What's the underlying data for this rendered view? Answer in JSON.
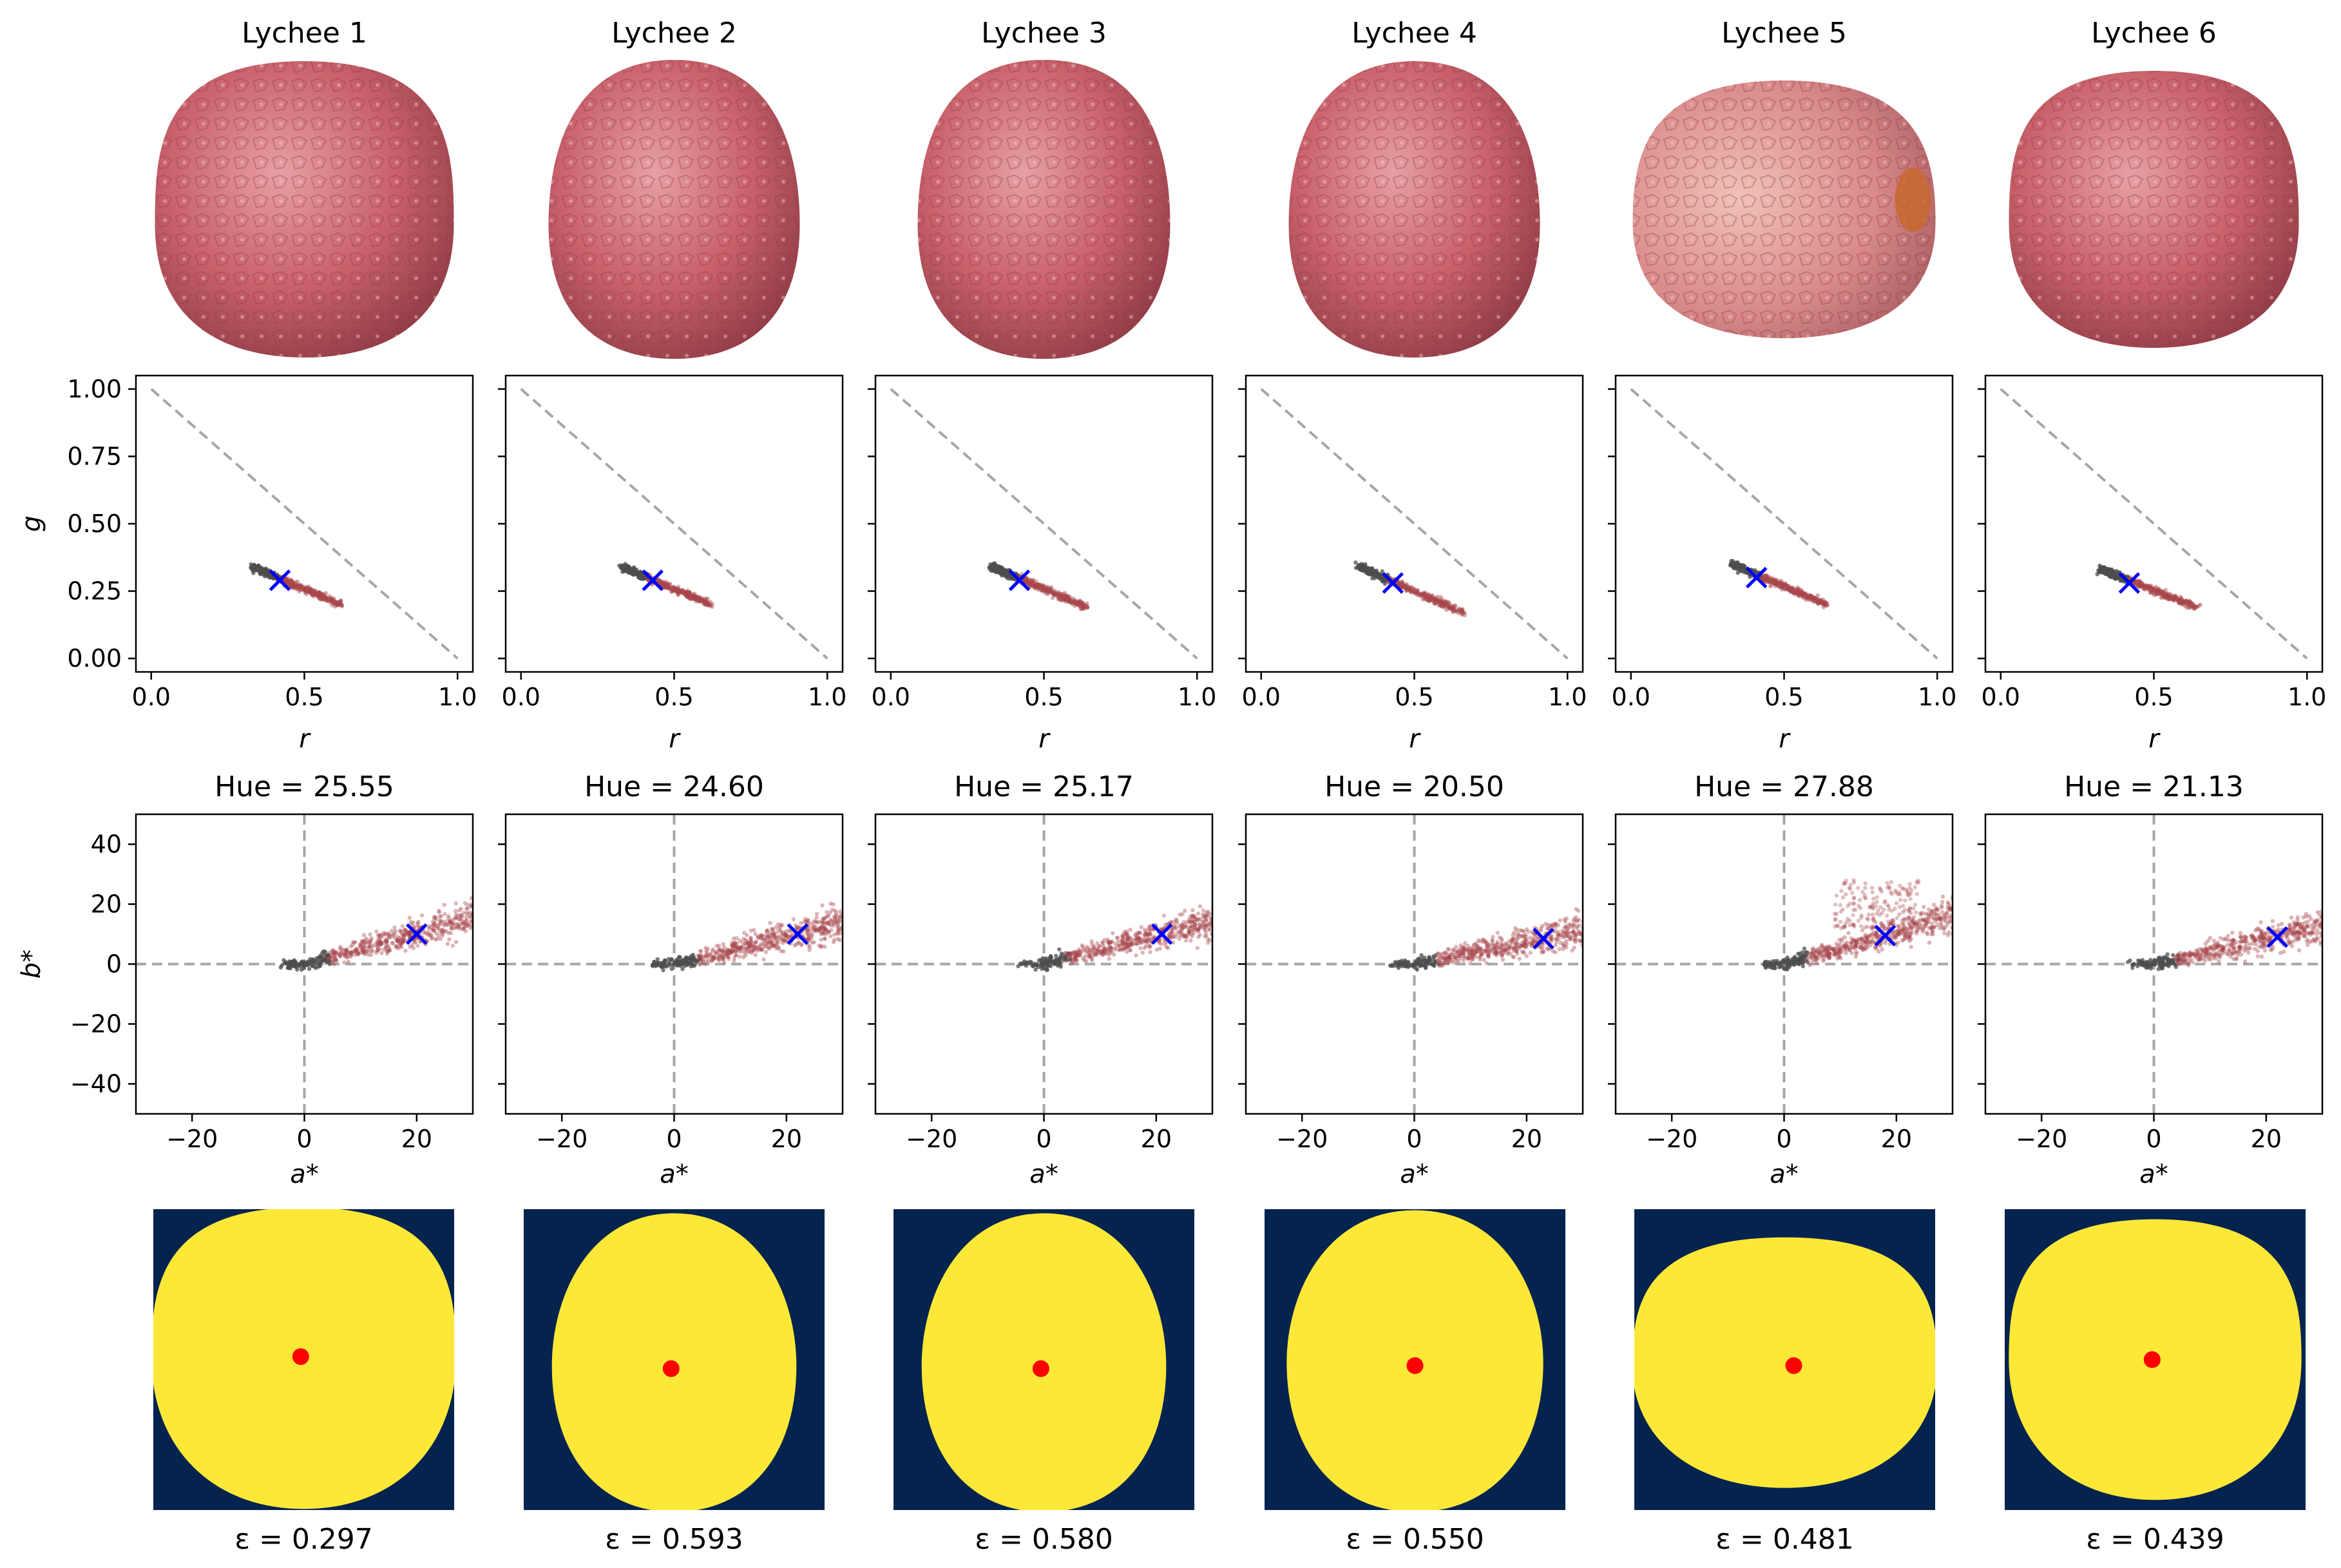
{
  "figure": {
    "columns": [
      {
        "title": "Lychee 1",
        "hue_label": "Hue = 25.55",
        "eps_label": "ε = 0.297"
      },
      {
        "title": "Lychee 2",
        "hue_label": "Hue = 24.60",
        "eps_label": "ε = 0.593"
      },
      {
        "title": "Lychee 3",
        "hue_label": "Hue = 25.17",
        "eps_label": "ε = 0.580"
      },
      {
        "title": "Lychee 4",
        "hue_label": "Hue = 20.50",
        "eps_label": "ε = 0.550"
      },
      {
        "title": "Lychee 5",
        "hue_label": "Hue = 27.88",
        "eps_label": "ε = 0.481"
      },
      {
        "title": "Lychee 6",
        "hue_label": "Hue = 21.13",
        "eps_label": "ε = 0.439"
      }
    ]
  },
  "colors": {
    "lychee_skin": "#c9616b",
    "lychee_light": "#e7a0a4",
    "lychee_dark": "#8e3a44",
    "mask_background": "#04234f",
    "mask_foreground": "#fde838",
    "centroid": "#ff0000",
    "mean_marker": "#0000ff",
    "pixel_gray": "#4d4d4d",
    "pixel_red": "#a8474c",
    "reference_line": "#a6a6a6"
  },
  "chart_data": [
    {
      "type": "scatter",
      "name": "rg chromaticity",
      "xlabel": "r",
      "ylabel": "g",
      "xlim": [
        -0.05,
        1.05
      ],
      "ylim": [
        -0.05,
        1.05
      ],
      "xticks": [
        "0.0",
        "0.5",
        "1.0"
      ],
      "yticks": [
        "0.00",
        "0.25",
        "0.50",
        "0.75",
        "1.00"
      ],
      "reference_line": {
        "from": [
          0,
          1
        ],
        "to": [
          1,
          0
        ],
        "style": "dashed"
      },
      "means": [
        [
          0.42,
          0.29
        ],
        [
          0.43,
          0.29
        ],
        [
          0.42,
          0.29
        ],
        [
          0.43,
          0.28
        ],
        [
          0.41,
          0.3
        ],
        [
          0.42,
          0.28
        ]
      ],
      "clusters": [
        {
          "r_range": [
            0.33,
            0.62
          ],
          "g_range": [
            0.34,
            0.2
          ]
        },
        {
          "r_range": [
            0.33,
            0.62
          ],
          "g_range": [
            0.34,
            0.2
          ]
        },
        {
          "r_range": [
            0.33,
            0.64
          ],
          "g_range": [
            0.34,
            0.19
          ]
        },
        {
          "r_range": [
            0.32,
            0.66
          ],
          "g_range": [
            0.34,
            0.17
          ]
        },
        {
          "r_range": [
            0.33,
            0.64
          ],
          "g_range": [
            0.35,
            0.2
          ]
        },
        {
          "r_range": [
            0.33,
            0.64
          ],
          "g_range": [
            0.33,
            0.19
          ]
        }
      ]
    },
    {
      "type": "scatter",
      "name": "a*b* chromaticity",
      "xlabel": "a*",
      "ylabel": "b*",
      "xlim": [
        -30,
        30
      ],
      "ylim": [
        -50,
        50
      ],
      "xticks": [
        "−20",
        "0",
        "20"
      ],
      "yticks": [
        "40",
        "20",
        "0",
        "−20",
        "−40"
      ],
      "means": [
        [
          20,
          10
        ],
        [
          22,
          10
        ],
        [
          21,
          10
        ],
        [
          23,
          8.5
        ],
        [
          18,
          9.5
        ],
        [
          22,
          9
        ]
      ],
      "hue": [
        25.55,
        24.6,
        25.17,
        20.5,
        27.88,
        21.13
      ]
    },
    {
      "type": "image",
      "name": "segmentation mask",
      "eccentricity": [
        0.297,
        0.593,
        0.58,
        0.55,
        0.481,
        0.439
      ],
      "centroids": [
        [
          0.49,
          0.49
        ],
        [
          0.49,
          0.53
        ],
        [
          0.49,
          0.53
        ],
        [
          0.5,
          0.52
        ],
        [
          0.53,
          0.52
        ],
        [
          0.49,
          0.5
        ]
      ]
    }
  ]
}
